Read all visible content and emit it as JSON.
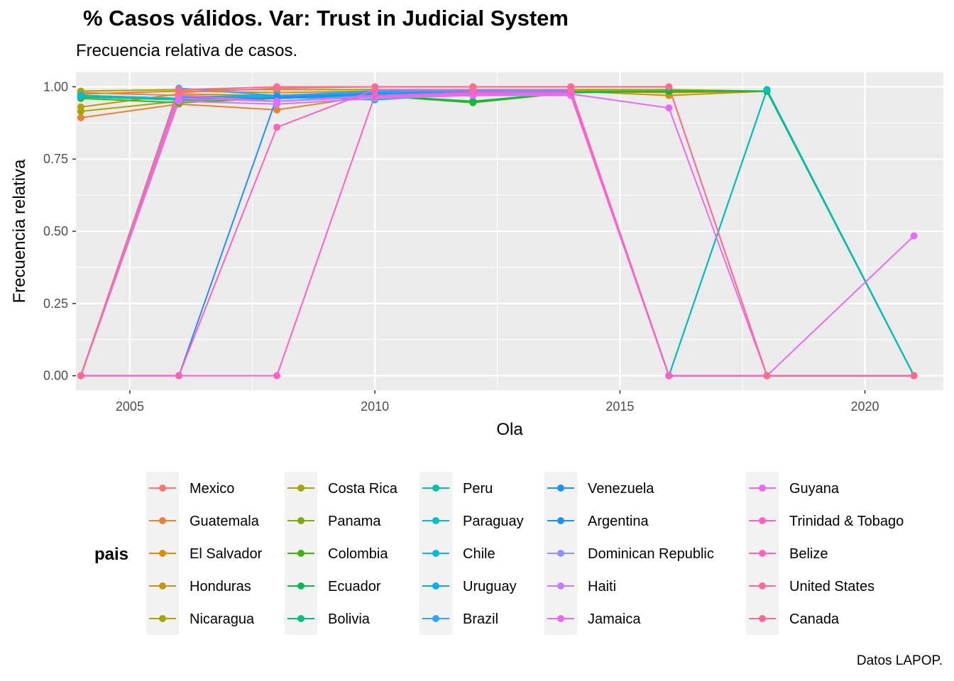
{
  "title": "% Casos válidos. Var: Trust in Judicial System",
  "subtitle": "Frecuencia relativa de casos.",
  "caption": "Datos LAPOP.",
  "chart_data": {
    "type": "line",
    "xlabel": "Ola",
    "ylabel": "Frecuencia relativa",
    "xlim": [
      2003.9,
      2021.6
    ],
    "ylim": [
      -0.05,
      1.05
    ],
    "x_ticks": [
      2005,
      2010,
      2015,
      2020
    ],
    "y_ticks": [
      0.0,
      0.25,
      0.5,
      0.75,
      1.0
    ],
    "y_tick_labels": [
      "0.00",
      "0.25",
      "0.50",
      "0.75",
      "1.00"
    ],
    "grid": true,
    "legend_title": "pais",
    "legend_position": "bottom",
    "x": [
      2004,
      2006,
      2008,
      2010,
      2012,
      2014,
      2016,
      2018,
      2021
    ],
    "series": [
      {
        "name": "Mexico",
        "color": "#F8766D",
        "values": [
          0.98,
          0.97,
          0.96,
          0.97,
          0.99,
          0.99,
          0.0,
          0.0,
          0.0
        ]
      },
      {
        "name": "Guatemala",
        "color": "#EA8331",
        "values": [
          0.893,
          0.94,
          0.92,
          0.97,
          0.98,
          0.98,
          0.0,
          0.0,
          0.0
        ]
      },
      {
        "name": "El Salvador",
        "color": "#D89000",
        "values": [
          0.975,
          0.985,
          0.98,
          0.985,
          0.99,
          0.985,
          0.97,
          0.985,
          0.0
        ]
      },
      {
        "name": "Honduras",
        "color": "#C09B00",
        "values": [
          0.93,
          0.975,
          0.97,
          0.98,
          0.985,
          0.985,
          0.98,
          0.985,
          0.0
        ]
      },
      {
        "name": "Nicaragua",
        "color": "#A3A500",
        "values": [
          0.915,
          0.95,
          0.965,
          0.975,
          0.98,
          0.985,
          0.98,
          0.985,
          0.0
        ]
      },
      {
        "name": "Costa Rica",
        "color": "#A3A500",
        "values": [
          0.985,
          0.99,
          0.99,
          0.99,
          0.99,
          0.99,
          0.99,
          0.985,
          0.0
        ]
      },
      {
        "name": "Panama",
        "color": "#7CAE00",
        "values": [
          0.97,
          0.96,
          0.97,
          0.975,
          0.98,
          0.985,
          0.985,
          0.985,
          0.0
        ]
      },
      {
        "name": "Colombia",
        "color": "#39B600",
        "values": [
          0.96,
          0.945,
          0.96,
          0.97,
          0.945,
          0.98,
          0.985,
          0.985,
          0.0
        ]
      },
      {
        "name": "Ecuador",
        "color": "#00BB4E",
        "values": [
          0.965,
          0.955,
          0.96,
          0.97,
          0.95,
          0.98,
          0.985,
          0.985,
          0.0
        ]
      },
      {
        "name": "Bolivia",
        "color": "#00BF7D",
        "values": [
          0.97,
          0.96,
          0.965,
          0.97,
          0.97,
          0.98,
          0.0,
          0.99,
          0.0
        ]
      },
      {
        "name": "Peru",
        "color": "#00C1A3",
        "values": [
          0.965,
          0.955,
          0.96,
          0.97,
          0.975,
          0.98,
          0.0,
          0.99,
          0.0
        ]
      },
      {
        "name": "Paraguay",
        "color": "#00BFC4",
        "values": [
          0.97,
          0.96,
          0.965,
          0.955,
          0.975,
          0.98,
          0.0,
          0.99,
          0.0
        ]
      },
      {
        "name": "Chile",
        "color": "#00BAE0",
        "values": [
          0.97,
          0.96,
          0.97,
          0.98,
          0.98,
          0.985,
          0.0,
          0.0,
          0.0
        ]
      },
      {
        "name": "Uruguay",
        "color": "#00B0F6",
        "values": [
          0.0,
          0.965,
          0.97,
          0.98,
          0.98,
          0.985,
          0.0,
          0.0,
          0.0
        ]
      },
      {
        "name": "Brazil",
        "color": "#35A2FF",
        "values": [
          0.0,
          0.995,
          0.97,
          0.985,
          0.985,
          0.985,
          0.0,
          0.0,
          0.0
        ]
      },
      {
        "name": "Venezuela",
        "color": "#1E90FF",
        "values": [
          0.0,
          0.96,
          0.96,
          0.975,
          0.98,
          0.98,
          0.0,
          0.0,
          0.0
        ]
      },
      {
        "name": "Argentina",
        "color": "#1E90FF",
        "values": [
          0.0,
          0.0,
          0.965,
          0.975,
          0.98,
          0.98,
          0.0,
          0.0,
          0.0
        ]
      },
      {
        "name": "Dominican Republic",
        "color": "#9590FF",
        "values": [
          0.0,
          0.96,
          0.95,
          0.97,
          0.975,
          0.975,
          0.0,
          0.0,
          0.0
        ]
      },
      {
        "name": "Haiti",
        "color": "#C77CFF",
        "values": [
          0.0,
          0.95,
          0.94,
          0.96,
          0.97,
          0.97,
          0.0,
          0.0,
          0.0
        ]
      },
      {
        "name": "Jamaica",
        "color": "#E76BF3",
        "values": [
          0.0,
          0.96,
          0.95,
          0.965,
          0.97,
          0.975,
          0.927,
          0.0,
          0.484
        ]
      },
      {
        "name": "Guyana",
        "color": "#E76BF3",
        "values": [
          0.0,
          0.97,
          0.95,
          0.965,
          0.975,
          0.97,
          0.0,
          0.0,
          0.0
        ]
      },
      {
        "name": "Trinidad & Tobago",
        "color": "#FF61C3",
        "values": [
          0.0,
          0.0,
          0.0,
          0.97,
          0.98,
          0.98,
          0.0,
          0.0,
          0.0
        ]
      },
      {
        "name": "Belize",
        "color": "#FF62BC",
        "values": [
          0.0,
          0.0,
          0.86,
          0.99,
          0.99,
          0.99,
          0.0,
          0.0,
          0.0
        ]
      },
      {
        "name": "United States",
        "color": "#FF6C91",
        "values": [
          0.0,
          0.99,
          1.0,
          1.0,
          1.0,
          1.0,
          1.0,
          0.0,
          0.0
        ]
      },
      {
        "name": "Canada",
        "color": "#FF6C91",
        "values": [
          0.0,
          0.98,
          0.995,
          1.0,
          1.0,
          1.0,
          1.0,
          0.0,
          0.0
        ]
      }
    ]
  }
}
